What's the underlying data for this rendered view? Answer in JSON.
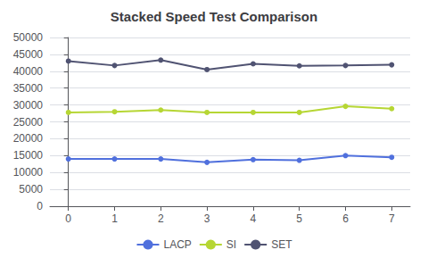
{
  "chart_data": {
    "type": "line",
    "title": "Stacked Speed Test Comparison",
    "x": [
      0,
      1,
      2,
      3,
      4,
      5,
      6,
      7
    ],
    "series": [
      {
        "name": "LACP",
        "values": [
          14000,
          14000,
          14000,
          13000,
          13800,
          13600,
          15000,
          14500
        ]
      },
      {
        "name": "SI",
        "values": [
          27800,
          28000,
          28500,
          27800,
          27800,
          27800,
          29600,
          28900
        ]
      },
      {
        "name": "SET",
        "values": [
          43000,
          41700,
          43300,
          40500,
          42200,
          41600,
          41700,
          41900
        ]
      }
    ],
    "xlim": [
      -0.4,
      7.4
    ],
    "xticks": [
      0,
      1,
      2,
      3,
      4,
      5,
      6,
      7
    ],
    "ylim": [
      0,
      50000
    ],
    "yticks": [
      0,
      5000,
      10000,
      15000,
      20000,
      25000,
      30000,
      35000,
      40000,
      45000,
      50000
    ],
    "grid": true,
    "legend": "bottom",
    "marker": "circle"
  }
}
